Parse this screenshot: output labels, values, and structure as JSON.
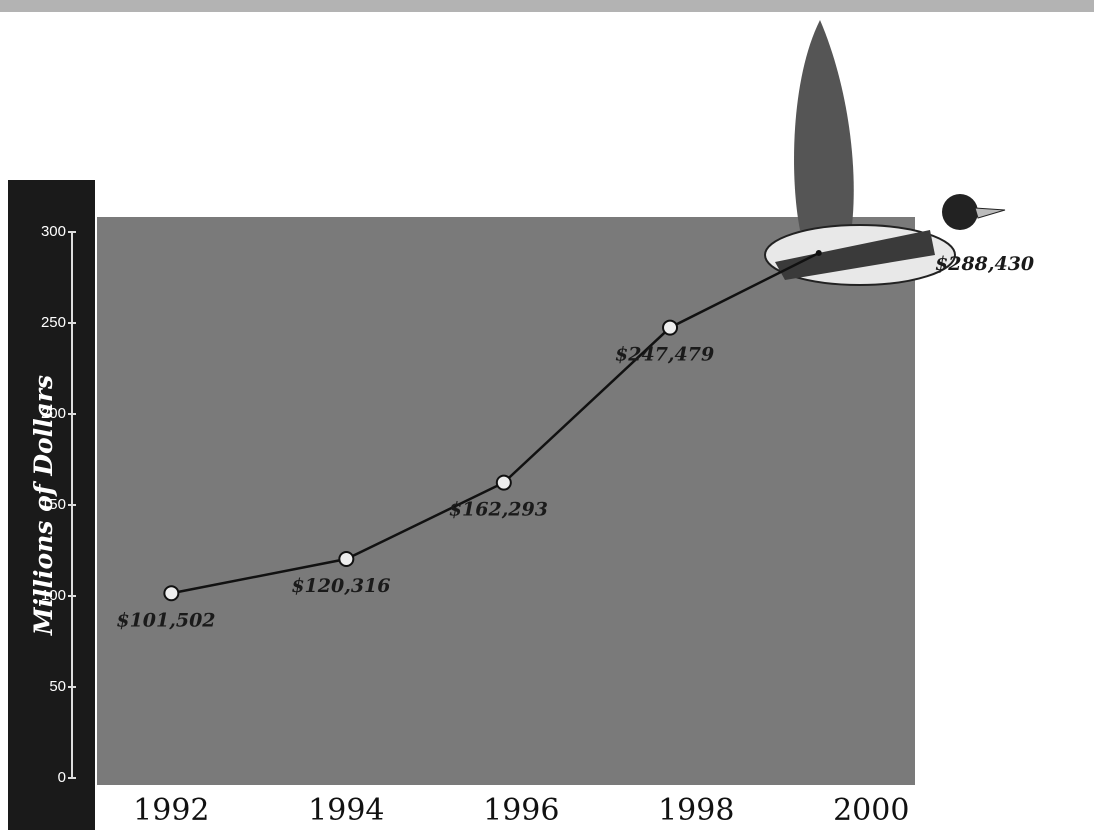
{
  "chart_data": {
    "type": "line",
    "y_label": "Millions of Dollars",
    "x": [
      1992,
      1994,
      1995.8,
      1997.7,
      1999.4
    ],
    "xticks": [
      1992,
      1994,
      1996,
      1998,
      2000
    ],
    "xlim": [
      1991.15,
      2000.5
    ],
    "series": [
      {
        "color": "#111111",
        "values": [
          101.502,
          120.316,
          162.293,
          247.479,
          288.43
        ],
        "value_labels": [
          "$101,502",
          "$120,316",
          "$162,293",
          "$247,479",
          "$288,430"
        ]
      }
    ],
    "ylim": [
      0,
      300
    ],
    "yticks": [
      0,
      50,
      100,
      150,
      200,
      250,
      300
    ]
  }
}
